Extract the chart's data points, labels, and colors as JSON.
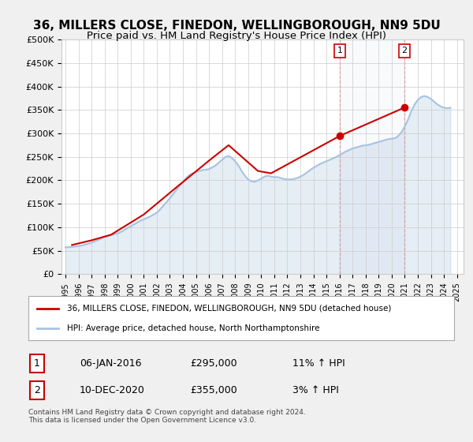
{
  "title": "36, MILLERS CLOSE, FINEDON, WELLINGBOROUGH, NN9 5DU",
  "subtitle": "Price paid vs. HM Land Registry's House Price Index (HPI)",
  "title_fontsize": 11,
  "subtitle_fontsize": 9.5,
  "ylabel_ticks": [
    "£0",
    "£50K",
    "£100K",
    "£150K",
    "£200K",
    "£250K",
    "£300K",
    "£350K",
    "£400K",
    "£450K",
    "£500K"
  ],
  "ytick_values": [
    0,
    50000,
    100000,
    150000,
    200000,
    250000,
    300000,
    350000,
    400000,
    450000,
    500000
  ],
  "ylim": [
    0,
    500000
  ],
  "xlim_start": 1995.0,
  "xlim_end": 2025.5,
  "background_color": "#f0f0f0",
  "plot_bg_color": "#ffffff",
  "hpi_color": "#aac4e0",
  "price_color": "#cc0000",
  "point1_x": 2016.03,
  "point1_y": 295000,
  "point2_x": 2020.95,
  "point2_y": 355000,
  "legend_line1": "36, MILLERS CLOSE, FINEDON, WELLINGBOROUGH, NN9 5DU (detached house)",
  "legend_line2": "HPI: Average price, detached house, North Northamptonshire",
  "table_row1": [
    "1",
    "06-JAN-2016",
    "£295,000",
    "11% ↑ HPI"
  ],
  "table_row2": [
    "2",
    "10-DEC-2020",
    "£355,000",
    "3% ↑ HPI"
  ],
  "footnote": "Contains HM Land Registry data © Crown copyright and database right 2024.\nThis data is licensed under the Open Government Licence v3.0.",
  "hpi_x": [
    1995.0,
    1995.25,
    1995.5,
    1995.75,
    1996.0,
    1996.25,
    1996.5,
    1996.75,
    1997.0,
    1997.25,
    1997.5,
    1997.75,
    1998.0,
    1998.25,
    1998.5,
    1998.75,
    1999.0,
    1999.25,
    1999.5,
    1999.75,
    2000.0,
    2000.25,
    2000.5,
    2000.75,
    2001.0,
    2001.25,
    2001.5,
    2001.75,
    2002.0,
    2002.25,
    2002.5,
    2002.75,
    2003.0,
    2003.25,
    2003.5,
    2003.75,
    2004.0,
    2004.25,
    2004.5,
    2004.75,
    2005.0,
    2005.25,
    2005.5,
    2005.75,
    2006.0,
    2006.25,
    2006.5,
    2006.75,
    2007.0,
    2007.25,
    2007.5,
    2007.75,
    2008.0,
    2008.25,
    2008.5,
    2008.75,
    2009.0,
    2009.25,
    2009.5,
    2009.75,
    2010.0,
    2010.25,
    2010.5,
    2010.75,
    2011.0,
    2011.25,
    2011.5,
    2011.75,
    2012.0,
    2012.25,
    2012.5,
    2012.75,
    2013.0,
    2013.25,
    2013.5,
    2013.75,
    2014.0,
    2014.25,
    2014.5,
    2014.75,
    2015.0,
    2015.25,
    2015.5,
    2015.75,
    2016.0,
    2016.25,
    2016.5,
    2016.75,
    2017.0,
    2017.25,
    2017.5,
    2017.75,
    2018.0,
    2018.25,
    2018.5,
    2018.75,
    2019.0,
    2019.25,
    2019.5,
    2019.75,
    2020.0,
    2020.25,
    2020.5,
    2020.75,
    2021.0,
    2021.25,
    2021.5,
    2021.75,
    2022.0,
    2022.25,
    2022.5,
    2022.75,
    2023.0,
    2023.25,
    2023.5,
    2023.75,
    2024.0,
    2024.25,
    2024.5
  ],
  "hpi_y": [
    57000,
    57500,
    58000,
    59000,
    60000,
    61000,
    63000,
    65000,
    67000,
    70000,
    73000,
    76000,
    79000,
    81000,
    83000,
    85000,
    87000,
    90000,
    94000,
    98000,
    102000,
    106000,
    110000,
    114000,
    117000,
    120000,
    123000,
    127000,
    131000,
    138000,
    146000,
    154000,
    162000,
    171000,
    180000,
    188000,
    196000,
    205000,
    212000,
    215000,
    218000,
    220000,
    222000,
    223000,
    224000,
    228000,
    232000,
    238000,
    244000,
    250000,
    252000,
    248000,
    241000,
    232000,
    220000,
    210000,
    202000,
    198000,
    197000,
    200000,
    204000,
    208000,
    210000,
    208000,
    207000,
    207000,
    205000,
    203000,
    202000,
    202000,
    203000,
    205000,
    208000,
    212000,
    217000,
    222000,
    227000,
    231000,
    235000,
    238000,
    241000,
    244000,
    247000,
    250000,
    254000,
    258000,
    262000,
    265000,
    268000,
    270000,
    272000,
    274000,
    275000,
    276000,
    278000,
    280000,
    282000,
    284000,
    286000,
    288000,
    289000,
    290000,
    295000,
    303000,
    315000,
    330000,
    348000,
    362000,
    372000,
    378000,
    380000,
    378000,
    374000,
    368000,
    362000,
    358000,
    355000,
    354000,
    355000
  ],
  "price_x": [
    1995.5,
    1997.0,
    1998.5,
    2001.0,
    2003.5,
    2006.0,
    2007.5,
    2009.75,
    2010.75,
    2016.03,
    2020.95
  ],
  "price_y": [
    62000,
    72000,
    84000,
    127000,
    185000,
    242000,
    275000,
    220000,
    215000,
    295000,
    355000
  ]
}
